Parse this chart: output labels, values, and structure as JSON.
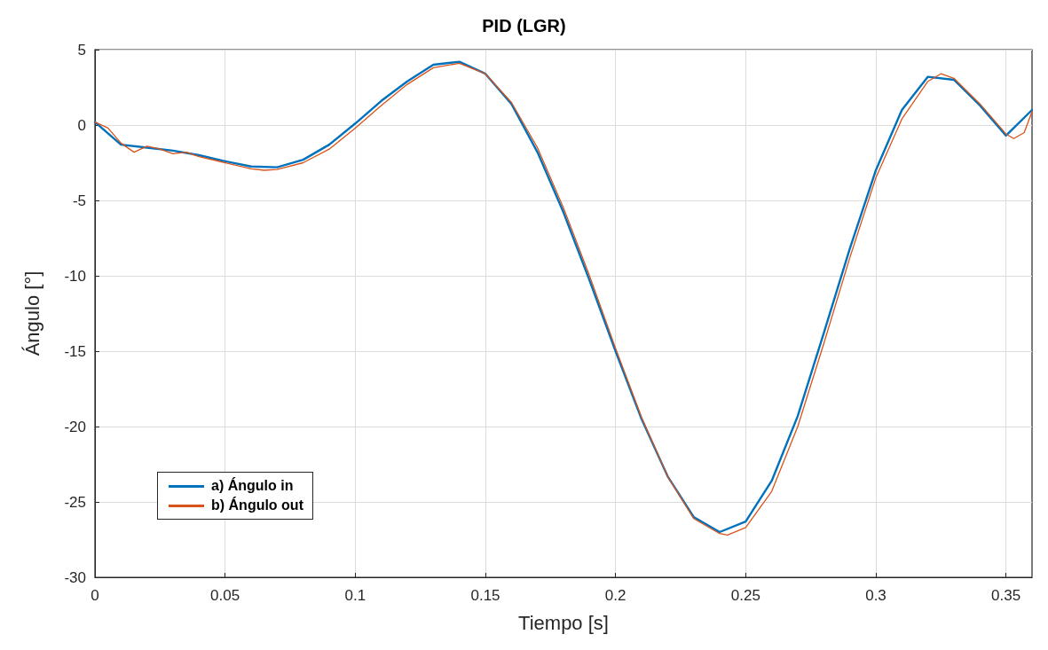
{
  "chart_data": {
    "type": "line",
    "title": "PID (LGR)",
    "xlabel": "Tiempo [s]",
    "ylabel": "Ángulo [°]",
    "xlim": [
      0,
      0.36
    ],
    "xticks": [
      0,
      0.05,
      0.1,
      0.15,
      0.2,
      0.25,
      0.3,
      0.35
    ],
    "ylim": [
      -30,
      5
    ],
    "yticks": [
      -30,
      -25,
      -20,
      -15,
      -10,
      -5,
      0,
      5
    ],
    "grid": true,
    "legend": "bottom left",
    "marker": "none",
    "line_style": "solid",
    "series": [
      {
        "name": "a) Ángulo in",
        "color": "#0072bd",
        "x": [
          0,
          0.01,
          0.02,
          0.03,
          0.04,
          0.05,
          0.06,
          0.07,
          0.08,
          0.09,
          0.1,
          0.11,
          0.12,
          0.13,
          0.14,
          0.15,
          0.16,
          0.17,
          0.18,
          0.19,
          0.2,
          0.21,
          0.22,
          0.23,
          0.24,
          0.25,
          0.26,
          0.27,
          0.28,
          0.29,
          0.3,
          0.31,
          0.32,
          0.33,
          0.34,
          0.35,
          0.36
        ],
        "values": [
          0.2,
          -1.3,
          -1.5,
          -1.7,
          -2.0,
          -2.4,
          -2.75,
          -2.8,
          -2.3,
          -1.3,
          0.1,
          1.6,
          2.9,
          4.0,
          4.2,
          3.4,
          1.4,
          -1.8,
          -5.8,
          -10.3,
          -15.0,
          -19.5,
          -23.3,
          -26.0,
          -27.0,
          -26.3,
          -23.6,
          -19.3,
          -13.8,
          -8.2,
          -3.0,
          1.0,
          3.2,
          3.0,
          1.3,
          -0.7,
          1.0
        ]
      },
      {
        "name": "b) Ángulo out",
        "color": "#d95319",
        "x": [
          0,
          0.005,
          0.01,
          0.015,
          0.02,
          0.025,
          0.03,
          0.035,
          0.04,
          0.05,
          0.06,
          0.065,
          0.07,
          0.08,
          0.09,
          0.1,
          0.11,
          0.12,
          0.13,
          0.14,
          0.15,
          0.16,
          0.17,
          0.18,
          0.19,
          0.2,
          0.21,
          0.22,
          0.23,
          0.24,
          0.243,
          0.25,
          0.26,
          0.27,
          0.28,
          0.29,
          0.3,
          0.31,
          0.32,
          0.325,
          0.33,
          0.34,
          0.35,
          0.353,
          0.357,
          0.36
        ],
        "values": [
          0.2,
          -0.2,
          -1.2,
          -1.8,
          -1.4,
          -1.6,
          -1.9,
          -1.8,
          -2.1,
          -2.5,
          -2.9,
          -3.0,
          -2.95,
          -2.5,
          -1.6,
          -0.2,
          1.3,
          2.7,
          3.8,
          4.1,
          3.4,
          1.5,
          -1.5,
          -5.5,
          -10.0,
          -14.8,
          -19.4,
          -23.3,
          -26.1,
          -27.1,
          -27.2,
          -26.7,
          -24.3,
          -20.0,
          -14.5,
          -8.8,
          -3.5,
          0.4,
          2.9,
          3.4,
          3.1,
          1.4,
          -0.6,
          -0.9,
          -0.5,
          0.9
        ]
      }
    ]
  }
}
